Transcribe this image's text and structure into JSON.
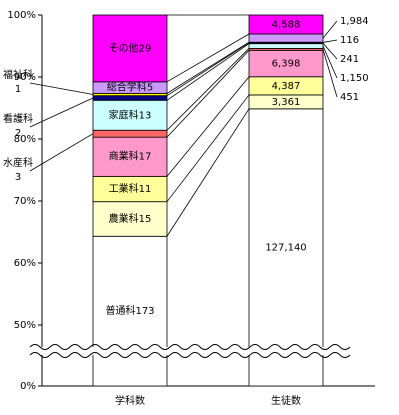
{
  "chart_data": {
    "type": "bar",
    "stacked": "percent",
    "broken_axis": true,
    "categories": [
      "学科数",
      "生徒数"
    ],
    "ylim": [
      0,
      100
    ],
    "yticks": [
      {
        "value": 0,
        "label": "0%"
      },
      {
        "value": 50,
        "label": "50%"
      },
      {
        "value": 60,
        "label": "60%"
      },
      {
        "value": 70,
        "label": "70%"
      },
      {
        "value": 80,
        "label": "80%"
      },
      {
        "value": 90,
        "label": "90%"
      },
      {
        "value": 100,
        "label": "100%"
      }
    ],
    "series": [
      {
        "name": "普通科",
        "color": "#ffffff",
        "values": [
          173,
          127140
        ],
        "value_labels": [
          "173",
          "127,140"
        ]
      },
      {
        "name": "農業科",
        "color": "#ffffcc",
        "values": [
          15,
          3361
        ],
        "value_labels": [
          "15",
          "3,361"
        ]
      },
      {
        "name": "工業科",
        "color": "#ffff99",
        "values": [
          11,
          4387
        ],
        "value_labels": [
          "11",
          "4,387"
        ]
      },
      {
        "name": "商業科",
        "color": "#ff99cc",
        "values": [
          17,
          6398
        ],
        "value_labels": [
          "17",
          "6,398"
        ]
      },
      {
        "name": "水産科",
        "color": "#ff6666",
        "values": [
          3,
          451
        ],
        "value_labels": [
          "3",
          "451"
        ]
      },
      {
        "name": "家庭科",
        "color": "#ccffff",
        "values": [
          13,
          1150
        ],
        "value_labels": [
          "13",
          "1,150"
        ]
      },
      {
        "name": "看護科",
        "color": "#000080",
        "values": [
          2,
          241
        ],
        "value_labels": [
          "2",
          "241"
        ]
      },
      {
        "name": "福祉科",
        "color": "#ffff00",
        "values": [
          1,
          116
        ],
        "value_labels": [
          "1",
          "116"
        ]
      },
      {
        "name": "総合学科",
        "color": "#cc99ff",
        "values": [
          5,
          1984
        ],
        "value_labels": [
          "5",
          "1,984"
        ]
      },
      {
        "name": "その他",
        "color": "#ff00ff",
        "values": [
          29,
          4588
        ],
        "value_labels": [
          "29",
          "4,588"
        ]
      }
    ]
  }
}
